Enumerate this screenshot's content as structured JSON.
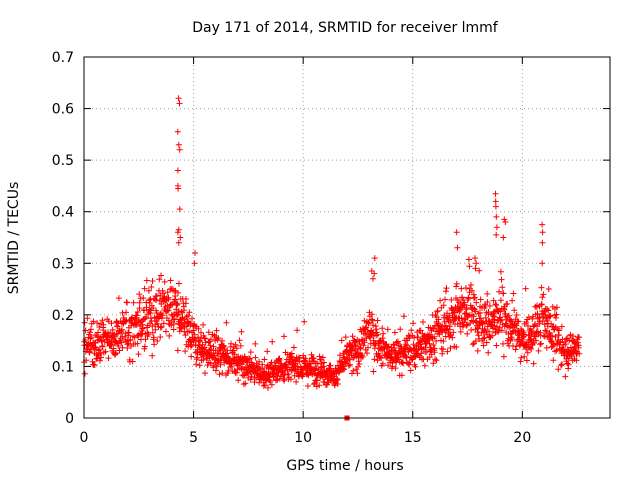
{
  "chart_data": {
    "type": "scatter",
    "title": "Day 171 of 2014, SRMTID for receiver lmmf",
    "xlabel": "GPS time / hours",
    "ylabel": "SRMTID / TECUs",
    "xlim": [
      0,
      24
    ],
    "ylim": [
      0,
      0.7
    ],
    "xticks": [
      0,
      5,
      10,
      15,
      20
    ],
    "yticks": [
      0,
      0.1,
      0.2,
      0.3,
      0.4,
      0.5,
      0.6,
      0.7
    ],
    "grid": true,
    "marker": "+",
    "color": "#ff0000",
    "x_range_observed": [
      0,
      22.6
    ],
    "trend": {
      "x": [
        0,
        1,
        2,
        3,
        3.8,
        4.3,
        4.8,
        5.5,
        6.5,
        7.5,
        8.2,
        9,
        10,
        11,
        11.5,
        12,
        12.5,
        13,
        13.5,
        14,
        15,
        16,
        17,
        17.5,
        18,
        18.5,
        19,
        19.5,
        20,
        20.5,
        21,
        21.5,
        22,
        22.6
      ],
      "y": [
        0.13,
        0.15,
        0.17,
        0.19,
        0.22,
        0.2,
        0.16,
        0.13,
        0.12,
        0.1,
        0.08,
        0.1,
        0.1,
        0.09,
        0.08,
        0.12,
        0.13,
        0.17,
        0.14,
        0.12,
        0.13,
        0.16,
        0.2,
        0.22,
        0.19,
        0.18,
        0.21,
        0.17,
        0.15,
        0.16,
        0.2,
        0.15,
        0.13,
        0.14
      ]
    },
    "peaks": [
      {
        "x": 4.35,
        "y_values": [
          0.62,
          0.61,
          0.555,
          0.53,
          0.52,
          0.48,
          0.45,
          0.445,
          0.405,
          0.365,
          0.36,
          0.35,
          0.34
        ]
      },
      {
        "x": 13.2,
        "y_values": [
          0.31,
          0.285,
          0.28,
          0.27
        ]
      },
      {
        "x": 18.8,
        "y_values": [
          0.435,
          0.42,
          0.41,
          0.39,
          0.37,
          0.355
        ]
      },
      {
        "x": 19.2,
        "y_values": [
          0.385,
          0.38,
          0.35
        ]
      },
      {
        "x": 20.9,
        "y_values": [
          0.375,
          0.36,
          0.34,
          0.3
        ]
      },
      {
        "x": 17.0,
        "y_values": [
          0.36,
          0.33
        ]
      },
      {
        "x": 17.9,
        "y_values": [
          0.31,
          0.3,
          0.29
        ]
      },
      {
        "x": 5.1,
        "y_values": [
          0.32,
          0.3
        ]
      }
    ],
    "outlier": {
      "x": 12.0,
      "y": 0.0
    }
  }
}
